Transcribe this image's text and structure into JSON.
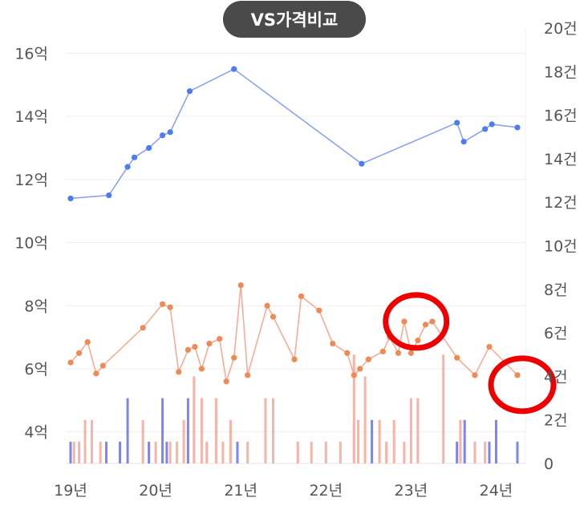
{
  "header": {
    "compare_button_label": "VS가격비교"
  },
  "colors": {
    "price_line": "#8ea2f2",
    "price_dot": "#4d7cf0",
    "trade_line": "#f6ad98",
    "trade_dot": "#f08a55",
    "bar_light": "#f7b3a6",
    "bar_blue": "#7e86ea",
    "highlight": "#ee0000",
    "grid": "#eeeeee"
  },
  "chart_data": {
    "type": "line",
    "grid": true,
    "x_ticks": [
      "19년",
      "20년",
      "21년",
      "22년",
      "23년",
      "24년"
    ],
    "y_left": {
      "unit": "억",
      "range": [
        3,
        16.8
      ],
      "ticks": [
        "4억",
        "6억",
        "8억",
        "10억",
        "12억",
        "14억",
        "16억"
      ]
    },
    "y_right": {
      "unit": "건",
      "range": [
        0,
        20
      ],
      "ticks": [
        "0",
        "2건",
        "4건",
        "6건",
        "8건",
        "10건",
        "12건",
        "14건",
        "16건",
        "18건",
        "20건"
      ]
    },
    "series": [
      {
        "kind": "price",
        "axis": "left",
        "points": [
          [
            2019.0,
            11.4
          ],
          [
            2019.45,
            11.5
          ],
          [
            2019.67,
            12.4
          ],
          [
            2019.75,
            12.7
          ],
          [
            2019.92,
            13.0
          ],
          [
            2020.08,
            13.4
          ],
          [
            2020.17,
            13.5
          ],
          [
            2020.4,
            14.8
          ],
          [
            2020.92,
            15.5
          ],
          [
            2022.42,
            12.5
          ],
          [
            2023.54,
            13.8
          ],
          [
            2023.62,
            13.2
          ],
          [
            2023.87,
            13.6
          ],
          [
            2023.95,
            13.75
          ],
          [
            2024.25,
            13.65
          ]
        ]
      },
      {
        "kind": "trade",
        "axis": "left",
        "points": [
          [
            2019.0,
            6.2
          ],
          [
            2019.1,
            6.5
          ],
          [
            2019.2,
            6.85
          ],
          [
            2019.3,
            5.85
          ],
          [
            2019.38,
            6.1
          ],
          [
            2019.85,
            7.3
          ],
          [
            2020.08,
            8.05
          ],
          [
            2020.17,
            7.95
          ],
          [
            2020.27,
            5.9
          ],
          [
            2020.38,
            6.6
          ],
          [
            2020.46,
            6.7
          ],
          [
            2020.54,
            6.0
          ],
          [
            2020.63,
            6.8
          ],
          [
            2020.75,
            6.95
          ],
          [
            2020.83,
            5.6
          ],
          [
            2020.92,
            6.35
          ],
          [
            2021.0,
            8.65
          ],
          [
            2021.08,
            5.8
          ],
          [
            2021.31,
            8.0
          ],
          [
            2021.38,
            7.65
          ],
          [
            2021.63,
            6.3
          ],
          [
            2021.71,
            8.3
          ],
          [
            2021.92,
            7.85
          ],
          [
            2022.08,
            6.8
          ],
          [
            2022.25,
            6.5
          ],
          [
            2022.33,
            5.8
          ],
          [
            2022.4,
            6.0
          ],
          [
            2022.5,
            6.3
          ],
          [
            2022.67,
            6.55
          ],
          [
            2022.75,
            7.0
          ],
          [
            2022.85,
            6.5
          ],
          [
            2022.92,
            7.5
          ],
          [
            2023.0,
            6.5
          ],
          [
            2023.08,
            6.9
          ],
          [
            2023.17,
            7.4
          ],
          [
            2023.25,
            7.5
          ],
          [
            2023.54,
            6.35
          ],
          [
            2023.75,
            5.8
          ],
          [
            2023.92,
            6.7
          ],
          [
            2024.25,
            5.8
          ]
        ]
      },
      {
        "kind": "volume_bars",
        "axis": "right",
        "bars": [
          [
            2019.0,
            1,
            "blue"
          ],
          [
            2019.04,
            1,
            "light"
          ],
          [
            2019.1,
            1,
            "light"
          ],
          [
            2019.17,
            2,
            "light"
          ],
          [
            2019.25,
            2,
            "light"
          ],
          [
            2019.35,
            1,
            "light"
          ],
          [
            2019.42,
            1,
            "blue"
          ],
          [
            2019.58,
            1,
            "blue"
          ],
          [
            2019.67,
            3,
            "blue"
          ],
          [
            2019.85,
            2,
            "light"
          ],
          [
            2019.92,
            1,
            "blue"
          ],
          [
            2020.0,
            1,
            "light"
          ],
          [
            2020.08,
            3,
            "blue"
          ],
          [
            2020.13,
            1,
            "blue"
          ],
          [
            2020.17,
            1,
            "light"
          ],
          [
            2020.25,
            1,
            "light"
          ],
          [
            2020.33,
            2,
            "light"
          ],
          [
            2020.38,
            3,
            "blue"
          ],
          [
            2020.45,
            4,
            "light"
          ],
          [
            2020.54,
            3,
            "light"
          ],
          [
            2020.6,
            1,
            "light"
          ],
          [
            2020.71,
            3,
            "light"
          ],
          [
            2020.79,
            1,
            "light"
          ],
          [
            2020.88,
            2,
            "light"
          ],
          [
            2020.96,
            1,
            "blue"
          ],
          [
            2021.08,
            1,
            "light"
          ],
          [
            2021.29,
            3,
            "light"
          ],
          [
            2021.38,
            3,
            "light"
          ],
          [
            2021.67,
            1,
            "light"
          ],
          [
            2021.83,
            1,
            "light"
          ],
          [
            2022.0,
            1,
            "light"
          ],
          [
            2022.17,
            1,
            "light"
          ],
          [
            2022.33,
            5,
            "light"
          ],
          [
            2022.38,
            2,
            "light"
          ],
          [
            2022.46,
            4,
            "light"
          ],
          [
            2022.54,
            2,
            "blue"
          ],
          [
            2022.63,
            2,
            "light"
          ],
          [
            2022.71,
            1,
            "light"
          ],
          [
            2022.8,
            2,
            "light"
          ],
          [
            2022.92,
            1,
            "light"
          ],
          [
            2023.0,
            3,
            "light"
          ],
          [
            2023.08,
            3,
            "light"
          ],
          [
            2023.38,
            5,
            "light"
          ],
          [
            2023.54,
            1,
            "blue"
          ],
          [
            2023.58,
            2,
            "light"
          ],
          [
            2023.63,
            2,
            "blue"
          ],
          [
            2023.75,
            1,
            "light"
          ],
          [
            2023.87,
            1,
            "light"
          ],
          [
            2023.92,
            1,
            "blue"
          ],
          [
            2024.0,
            2,
            "blue"
          ],
          [
            2024.25,
            1,
            "blue"
          ]
        ]
      }
    ],
    "highlights": [
      [
        2023.06,
        7.5
      ],
      [
        2024.25,
        5.8
      ]
    ]
  }
}
